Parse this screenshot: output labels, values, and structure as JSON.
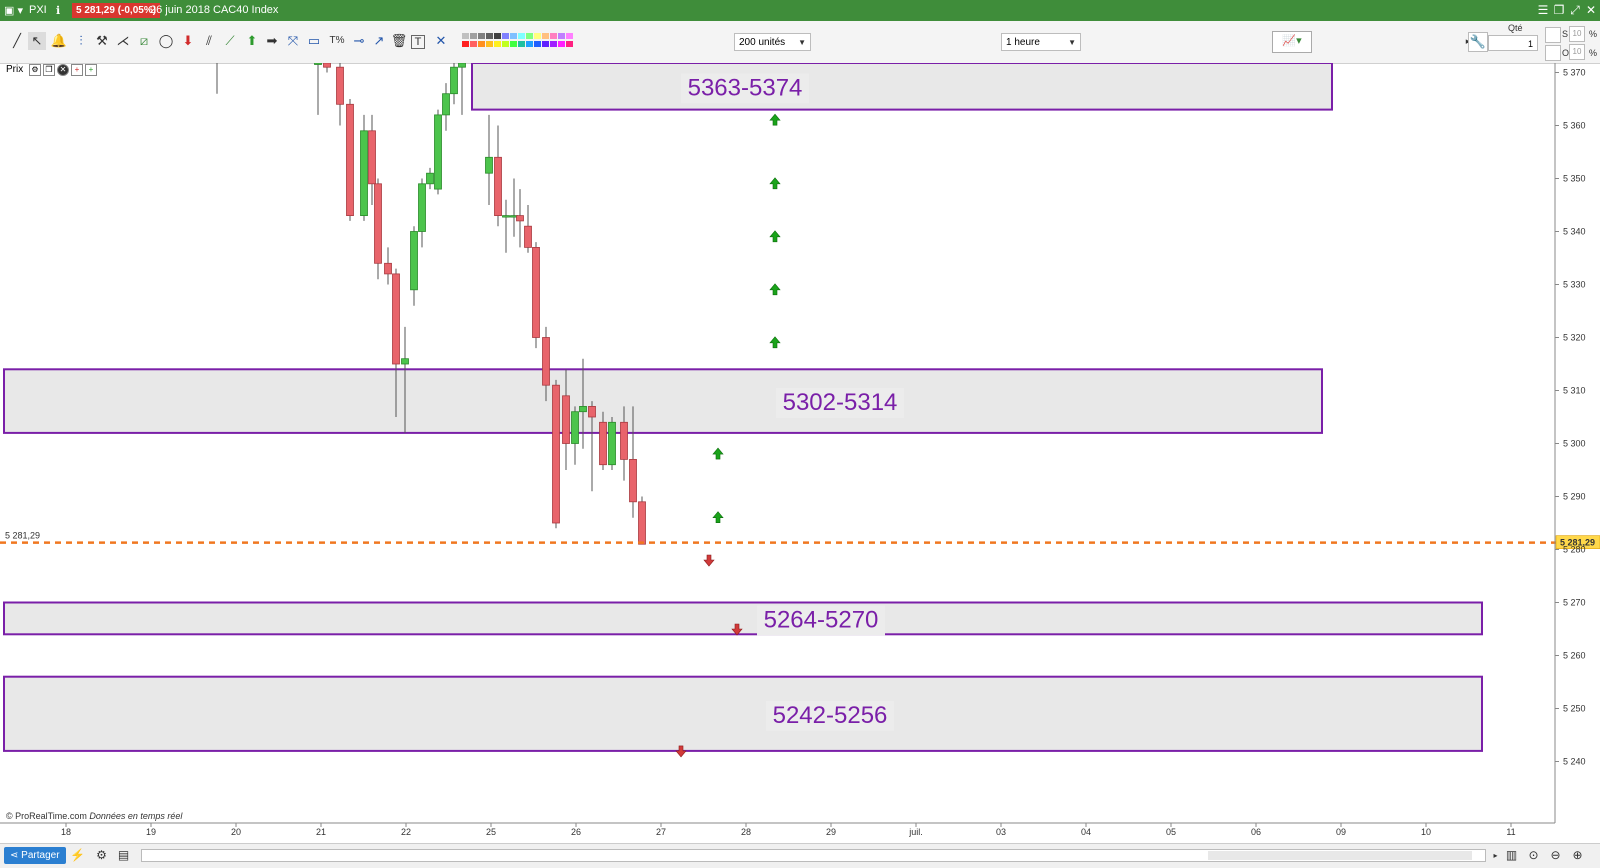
{
  "titlebar": {
    "ticker": "PXI",
    "price_badge": "5 281,29 (-0,05%)",
    "info": "26 juin 2018 CAC40 Index",
    "bg": "#3f8d3a"
  },
  "toolbar": {
    "units_select": "200 unités",
    "interval_select": "1 heure",
    "qty_label": "Qté",
    "qty_value": "1",
    "s_label": "S",
    "o_label": "O",
    "pct1": "10",
    "pct2": "10",
    "pct_sign": "%"
  },
  "chart_panel": {
    "label": "Prix",
    "credit": "© ProRealTime.com",
    "credit_italic": "Données en temps réel",
    "current_price_left": "5 281,29",
    "current_price_right": "5 281,29"
  },
  "bottombar": {
    "share_label": "Partager"
  },
  "chart_data": {
    "type": "candlestick",
    "y_ticks": [
      5370,
      5360,
      5350,
      5340,
      5330,
      5320,
      5310,
      5300,
      5290,
      5280,
      5270,
      5260,
      5250,
      5240
    ],
    "y_tick_labels": [
      "5 370",
      "5 360",
      "5 350",
      "5 340",
      "5 330",
      "5 320",
      "5 310",
      "5 300",
      "5 290",
      "5 280",
      "5 270",
      "5 260",
      "5 250",
      "5 240"
    ],
    "x_labels": [
      "18",
      "19",
      "20",
      "21",
      "22",
      "25",
      "26",
      "27",
      "28",
      "29",
      "juil.",
      "03",
      "04",
      "05",
      "06",
      "09",
      "10",
      "11"
    ],
    "current_price": 5281.29,
    "zones": [
      {
        "label": "5363-5374",
        "low": 5363,
        "high": 5374
      },
      {
        "label": "5302-5314",
        "low": 5302,
        "high": 5314
      },
      {
        "label": "5264-5270",
        "low": 5264,
        "high": 5270
      },
      {
        "label": "5242-5256",
        "low": 5242,
        "high": 5256
      }
    ],
    "arrows_up": [
      5361,
      5349,
      5339,
      5329,
      5319,
      5298,
      5286
    ],
    "arrows_down": [
      5278,
      5265,
      5242
    ],
    "candles": [
      {
        "o": 5374,
        "h": 5378,
        "l": 5362,
        "c": 5376
      },
      {
        "o": 5373,
        "h": 5380,
        "l": 5370,
        "c": 5371
      },
      {
        "o": 5371,
        "h": 5372,
        "l": 5360,
        "c": 5364
      },
      {
        "o": 5364,
        "h": 5365,
        "l": 5342,
        "c": 5343
      },
      {
        "o": 5343,
        "h": 5362,
        "l": 5342,
        "c": 5359
      },
      {
        "o": 5359,
        "h": 5362,
        "l": 5345,
        "c": 5349
      },
      {
        "o": 5349,
        "h": 5350,
        "l": 5331,
        "c": 5334
      },
      {
        "o": 5334,
        "h": 5337,
        "l": 5330,
        "c": 5332
      },
      {
        "o": 5332,
        "h": 5333,
        "l": 5305,
        "c": 5315
      },
      {
        "o": 5315,
        "h": 5322,
        "l": 5302,
        "c": 5316
      },
      {
        "o": 5329,
        "h": 5341,
        "l": 5326,
        "c": 5340
      },
      {
        "o": 5340,
        "h": 5350,
        "l": 5337,
        "c": 5349
      },
      {
        "o": 5349,
        "h": 5352,
        "l": 5348,
        "c": 5351
      },
      {
        "o": 5348,
        "h": 5363,
        "l": 5347,
        "c": 5362
      },
      {
        "o": 5362,
        "h": 5368,
        "l": 5359,
        "c": 5366
      },
      {
        "o": 5366,
        "h": 5374,
        "l": 5364,
        "c": 5371
      },
      {
        "o": 5371,
        "h": 5378,
        "l": 5362,
        "c": 5374
      },
      {
        "o": 5351,
        "h": 5362,
        "l": 5345,
        "c": 5354
      },
      {
        "o": 5354,
        "h": 5360,
        "l": 5341,
        "c": 5343
      },
      {
        "o": 5343,
        "h": 5346,
        "l": 5336,
        "c": 5343
      },
      {
        "o": 5343,
        "h": 5350,
        "l": 5339,
        "c": 5343
      },
      {
        "o": 5343,
        "h": 5348,
        "l": 5337,
        "c": 5342
      },
      {
        "o": 5341,
        "h": 5345,
        "l": 5336,
        "c": 5337
      },
      {
        "o": 5337,
        "h": 5338,
        "l": 5318,
        "c": 5320
      },
      {
        "o": 5320,
        "h": 5322,
        "l": 5308,
        "c": 5311
      },
      {
        "o": 5311,
        "h": 5312,
        "l": 5284,
        "c": 5285
      },
      {
        "o": 5309,
        "h": 5314,
        "l": 5295,
        "c": 5300
      },
      {
        "o": 5300,
        "h": 5307,
        "l": 5296,
        "c": 5306
      },
      {
        "o": 5306,
        "h": 5316,
        "l": 5299,
        "c": 5307
      },
      {
        "o": 5307,
        "h": 5308,
        "l": 5291,
        "c": 5305
      },
      {
        "o": 5304,
        "h": 5306,
        "l": 5295,
        "c": 5296
      },
      {
        "o": 5296,
        "h": 5305,
        "l": 5295,
        "c": 5304
      },
      {
        "o": 5304,
        "h": 5307,
        "l": 5293,
        "c": 5297
      },
      {
        "o": 5297,
        "h": 5307,
        "l": 5286,
        "c": 5289
      },
      {
        "o": 5289,
        "h": 5290,
        "l": 5281,
        "c": 5281
      }
    ]
  }
}
